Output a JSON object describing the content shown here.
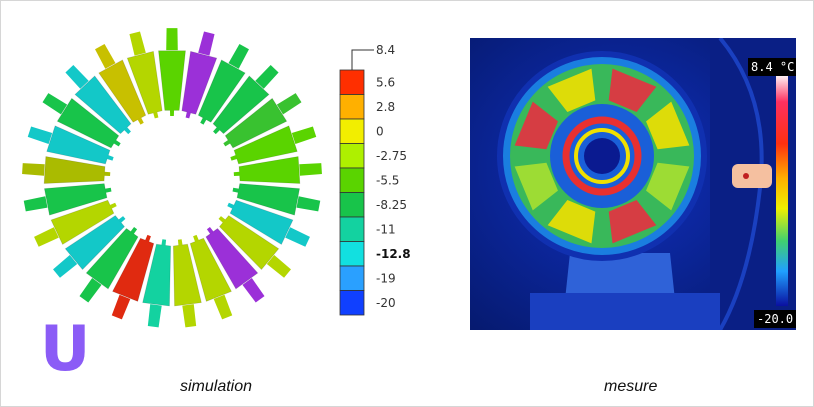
{
  "logo_letter": "U",
  "captions": {
    "left": "simulation",
    "right": "mesure"
  },
  "scale": {
    "ticks": [
      {
        "label": "8.4",
        "color": null
      },
      {
        "label": "5.6",
        "color": "#ff2f00"
      },
      {
        "label": "2.8",
        "color": "#ffb000"
      },
      {
        "label": "0",
        "color": "#f2ee00"
      },
      {
        "label": "-2.75",
        "color": "#aef000"
      },
      {
        "label": "-5.5",
        "color": "#5ad400"
      },
      {
        "label": "-8.25",
        "color": "#18c44a"
      },
      {
        "label": "-11",
        "color": "#13d2a0"
      },
      {
        "label": "-12.88",
        "color": "#12e0e0",
        "bold": true
      },
      {
        "label": "-19",
        "color": "#2aa0ff"
      },
      {
        "label": "-20",
        "color": "#1040ff"
      }
    ]
  },
  "thermal": {
    "max_label": "8.4 °C",
    "min_label": "-20.0"
  },
  "colors": {
    "logo": "#8b5cf6",
    "segments": [
      "#5ad400",
      "#9b30d8",
      "#18c44a",
      "#18c44a",
      "#39c230",
      "#5ad400",
      "#5ad400",
      "#18c44a",
      "#13c8c8",
      "#b4d600",
      "#9b30d8",
      "#b4d600",
      "#b4d600",
      "#13d2a0",
      "#e02a10",
      "#18c44a",
      "#13c8c8",
      "#b4d600",
      "#18c44a",
      "#aabb00",
      "#13c8c8",
      "#18c44a",
      "#13c8c8",
      "#c8c000",
      "#b4d600"
    ]
  }
}
